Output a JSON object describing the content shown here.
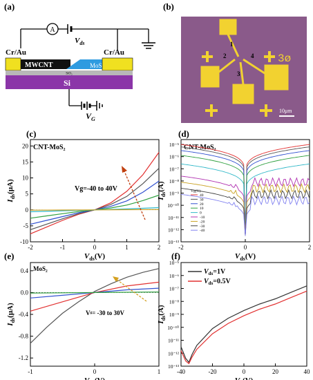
{
  "panels": {
    "a": {
      "label": "(a)",
      "electrode_left": "Cr/Au",
      "electrode_right": "Cr/Au",
      "meter": "A",
      "vds_label": "V",
      "vds_sub": "ds",
      "cnt_label": "MWCNT",
      "oxide_label": "SiO₂",
      "mos2_label": "MoS",
      "mos2_sub": "2",
      "substrate_label": "Si",
      "vg_label": "V",
      "vg_sub": "G",
      "colors": {
        "electrode": "#f0e020",
        "cnt": "#111111",
        "mos2": "#2f9be0",
        "oxide": "#b8b8b8",
        "si": "#8b35a8"
      }
    },
    "b": {
      "label": "(b)",
      "pad_numbers": [
        "1",
        "2",
        "3",
        "4"
      ],
      "scale_bar": "10μm",
      "corner_mark": "3ø",
      "colors": {
        "background": "#8a5a8a",
        "metal": "#f2d230"
      }
    },
    "c": {
      "label": "(c)"
    },
    "d": {
      "label": "(d)"
    },
    "e": {
      "label": "(e)"
    },
    "f": {
      "label": "(f)"
    }
  },
  "chart_data": [
    {
      "id": "c",
      "type": "line",
      "title": "CNT-MoS₂",
      "xlabel": "V",
      "xlabel_sub": "ds",
      "xlabel_unit": "(V)",
      "ylabel": "I",
      "ylabel_sub": "ds",
      "ylabel_unit": "(μA)",
      "xlim": [
        -2,
        2
      ],
      "ylim": [
        -10,
        22
      ],
      "xticks": [
        "-2",
        "-1",
        "0",
        "1",
        "2"
      ],
      "yticks": [
        "-10",
        "-5",
        "0",
        "5",
        "10",
        "15",
        "20"
      ],
      "annotation": "Vg=-40 to 40V",
      "series": [
        {
          "color": "#e23030",
          "x": [
            -2,
            -1.5,
            -1,
            -0.5,
            0,
            0.5,
            1,
            1.5,
            2
          ],
          "values": [
            -7.5,
            -5.4,
            -3.3,
            -1.4,
            0,
            2.2,
            5.8,
            11.0,
            18.0
          ]
        },
        {
          "color": "#555555",
          "x": [
            -2,
            -1.5,
            -1,
            -0.5,
            0,
            0.5,
            1,
            1.5,
            2
          ],
          "values": [
            -6.2,
            -4.5,
            -2.8,
            -1.2,
            0,
            1.7,
            4.2,
            8.2,
            13.0
          ]
        },
        {
          "color": "#3050d0",
          "x": [
            -2,
            -1.5,
            -1,
            -0.5,
            0,
            0.5,
            1,
            1.5,
            2
          ],
          "values": [
            -4.5,
            -3.3,
            -2.1,
            -0.9,
            0,
            1.1,
            2.8,
            5.5,
            9.0
          ]
        },
        {
          "color": "#30a040",
          "x": [
            -2,
            -1.5,
            -1,
            -0.5,
            0,
            0.5,
            1,
            1.5,
            2
          ],
          "values": [
            -2.6,
            -1.9,
            -1.2,
            -0.5,
            0,
            0.6,
            1.5,
            2.9,
            4.6
          ]
        },
        {
          "color": "#30b8c8",
          "x": [
            -2,
            -1,
            0,
            1,
            2
          ],
          "values": [
            -0.6,
            -0.3,
            0,
            0.3,
            0.7
          ]
        },
        {
          "color": "#c8a020",
          "x": [
            -2,
            -1,
            0,
            1,
            2
          ],
          "values": [
            -0.1,
            -0.05,
            0,
            0.05,
            0.1
          ]
        }
      ]
    },
    {
      "id": "d",
      "type": "line",
      "title": "CNT-MoS₂",
      "xlabel": "V",
      "xlabel_sub": "ds",
      "xlabel_unit": "(V)",
      "ylabel": "I",
      "ylabel_sub": "ds",
      "ylabel_unit": "(A)",
      "xlim": [
        -2,
        2
      ],
      "ylog": true,
      "ylim_exp": [
        -13,
        -4.6
      ],
      "xticks": [
        "-2",
        "0",
        "2"
      ],
      "yticks": [
        "10⁻¹³",
        "10⁻¹²",
        "10⁻¹¹",
        "10⁻¹⁰",
        "10⁻⁹",
        "10⁻⁸",
        "10⁻⁷",
        "10⁻⁶",
        "10⁻⁵"
      ],
      "legend_title": "Vg(V)",
      "legend_entries": [
        "40",
        "30",
        "20",
        "10",
        "0",
        "-10",
        "-20",
        "-30",
        "-40"
      ],
      "series_end_exp": [
        -5.0,
        -5.2,
        -5.5,
        -5.9,
        -6.6,
        -7.6,
        -8.1,
        -8.6,
        -9.1
      ],
      "series_colors": [
        "#e23030",
        "#555555",
        "#3050d0",
        "#30a040",
        "#30b8c8",
        "#b030b0",
        "#c8a020",
        "#404040",
        "#8080f0"
      ]
    },
    {
      "id": "e",
      "type": "line",
      "title": "MoS₂",
      "xlabel": "V",
      "xlabel_sub": "ds",
      "xlabel_unit": "(V)",
      "ylabel": "I",
      "ylabel_sub": "ds",
      "ylabel_unit": "(μA)",
      "xlim": [
        -1,
        1
      ],
      "ylim": [
        -1.35,
        0.55
      ],
      "xticks": [
        "-1",
        "0",
        "1"
      ],
      "yticks": [
        "-1.2",
        "-0.8",
        "-0.4",
        "0.0",
        "0.4"
      ],
      "annotation": "Vᵍ= -30 to 30V",
      "series": [
        {
          "color": "#555555",
          "x": [
            -1,
            -0.75,
            -0.5,
            -0.25,
            0,
            0.25,
            0.5,
            0.75,
            1
          ],
          "values": [
            -0.93,
            -0.64,
            -0.38,
            -0.17,
            0.02,
            0.16,
            0.28,
            0.37,
            0.44
          ]
        },
        {
          "color": "#e23030",
          "x": [
            -1,
            -0.5,
            0,
            0.5,
            1
          ],
          "values": [
            -0.34,
            -0.17,
            0.0,
            0.12,
            0.19
          ]
        },
        {
          "color": "#3050d0",
          "x": [
            -1,
            -0.5,
            0,
            0.5,
            1
          ],
          "values": [
            -0.1,
            -0.05,
            0.0,
            0.05,
            0.08
          ]
        },
        {
          "color": "#30a040",
          "x": [
            -1,
            0,
            1
          ],
          "values": [
            -0.01,
            0.0,
            0.01
          ]
        }
      ]
    },
    {
      "id": "f",
      "type": "line",
      "xlabel": "V",
      "xlabel_sub": "g",
      "xlabel_unit": "(V)",
      "ylabel": "I",
      "ylabel_sub": "ds",
      "ylabel_unit": "(A)",
      "xlim": [
        -40,
        40
      ],
      "ylog": true,
      "ylim_exp": [
        -13,
        -5
      ],
      "xticks": [
        "-40",
        "-20",
        "0",
        "20",
        "40"
      ],
      "yticks": [
        "10⁻¹³",
        "10⁻¹²",
        "10⁻¹¹",
        "10⁻¹⁰",
        "10⁻⁹",
        "10⁻⁸",
        "10⁻⁷",
        "10⁻⁶",
        "10⁻⁵"
      ],
      "legend": [
        {
          "label_pre": "V",
          "label_sub": "ds",
          "label_post": "=1V",
          "color": "#333333"
        },
        {
          "label_pre": "V",
          "label_sub": "ds",
          "label_post": "=0.5V",
          "color": "#e23030"
        }
      ],
      "series": [
        {
          "color": "#333333",
          "x": [
            -40,
            -37,
            -35,
            -33,
            -30,
            -20,
            -10,
            0,
            10,
            20,
            30,
            40
          ],
          "y_exp": [
            -11.5,
            -12.4,
            -12.7,
            -12.1,
            -11.4,
            -10.1,
            -9.3,
            -8.7,
            -8.2,
            -7.8,
            -7.3,
            -6.8
          ]
        },
        {
          "color": "#e23030",
          "x": [
            -40,
            -37,
            -35,
            -33,
            -30,
            -20,
            -10,
            0,
            10,
            20,
            30,
            40
          ],
          "y_exp": [
            -11.8,
            -12.6,
            -12.8,
            -12.3,
            -11.7,
            -10.5,
            -9.7,
            -9.1,
            -8.6,
            -8.2,
            -7.7,
            -7.2
          ]
        }
      ]
    }
  ]
}
